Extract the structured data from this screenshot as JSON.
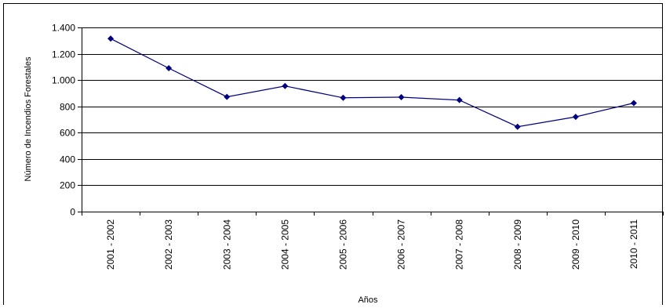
{
  "chart_data": {
    "type": "line",
    "title": "",
    "xlabel": "Años",
    "ylabel": "Número de Incendios Forestales",
    "categories": [
      "2001 - 2002",
      "2002 - 2003",
      "2003 - 2004",
      "2004 - 2005",
      "2005 - 2006",
      "2006 - 2007",
      "2007 - 2008",
      "2008 - 2009",
      "2009 - 2010",
      "2010 - 2011"
    ],
    "series": [
      {
        "values": [
          1315,
          1090,
          872,
          955,
          865,
          870,
          848,
          645,
          720,
          825
        ]
      }
    ],
    "ylim": [
      0,
      1400
    ],
    "yticks": [
      0,
      200,
      400,
      600,
      800,
      1000,
      1200,
      1400
    ],
    "ytick_labels": [
      "0",
      "200",
      "400",
      "600",
      "800",
      "1.000",
      "1.200",
      "1.400"
    ],
    "grid": true,
    "legend": "none",
    "colors": {
      "line": "#000080",
      "marker": "#000080",
      "grid": "#000000"
    }
  }
}
